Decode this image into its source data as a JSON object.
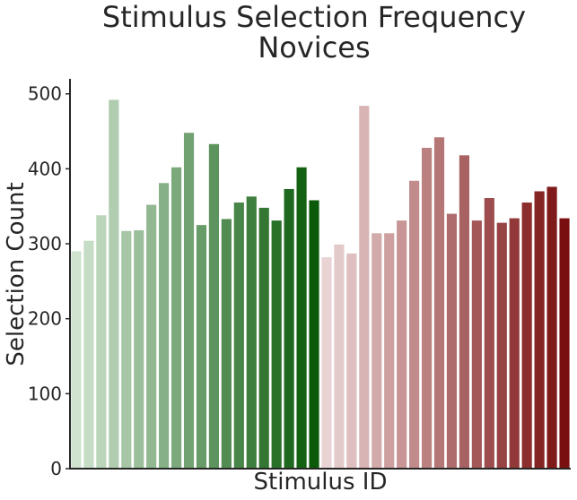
{
  "chart_data": {
    "type": "bar",
    "title_line1": "Stimulus Selection Frequency",
    "title_line2": "Novices",
    "xlabel": "Stimulus ID",
    "ylabel": "Selection Count",
    "ylim": [
      0,
      520
    ],
    "yticks": [
      0,
      100,
      200,
      300,
      400,
      500
    ],
    "grid": false,
    "legend": "none",
    "x_tick_labels_shown": false,
    "groups": [
      {
        "color_from": "#cfe3cf",
        "color_to": "#0a5a0a",
        "values": [
          290,
          304,
          338,
          492,
          317,
          318,
          352,
          381,
          402,
          448,
          325,
          433,
          333,
          355,
          363,
          348,
          331,
          373,
          402,
          358
        ]
      },
      {
        "color_from": "#ead3d3",
        "color_to": "#7a0f0f",
        "values": [
          282,
          299,
          287,
          484,
          314,
          314,
          331,
          384,
          428,
          442,
          340,
          418,
          331,
          361,
          328,
          334,
          355,
          370,
          376,
          334
        ]
      }
    ]
  }
}
